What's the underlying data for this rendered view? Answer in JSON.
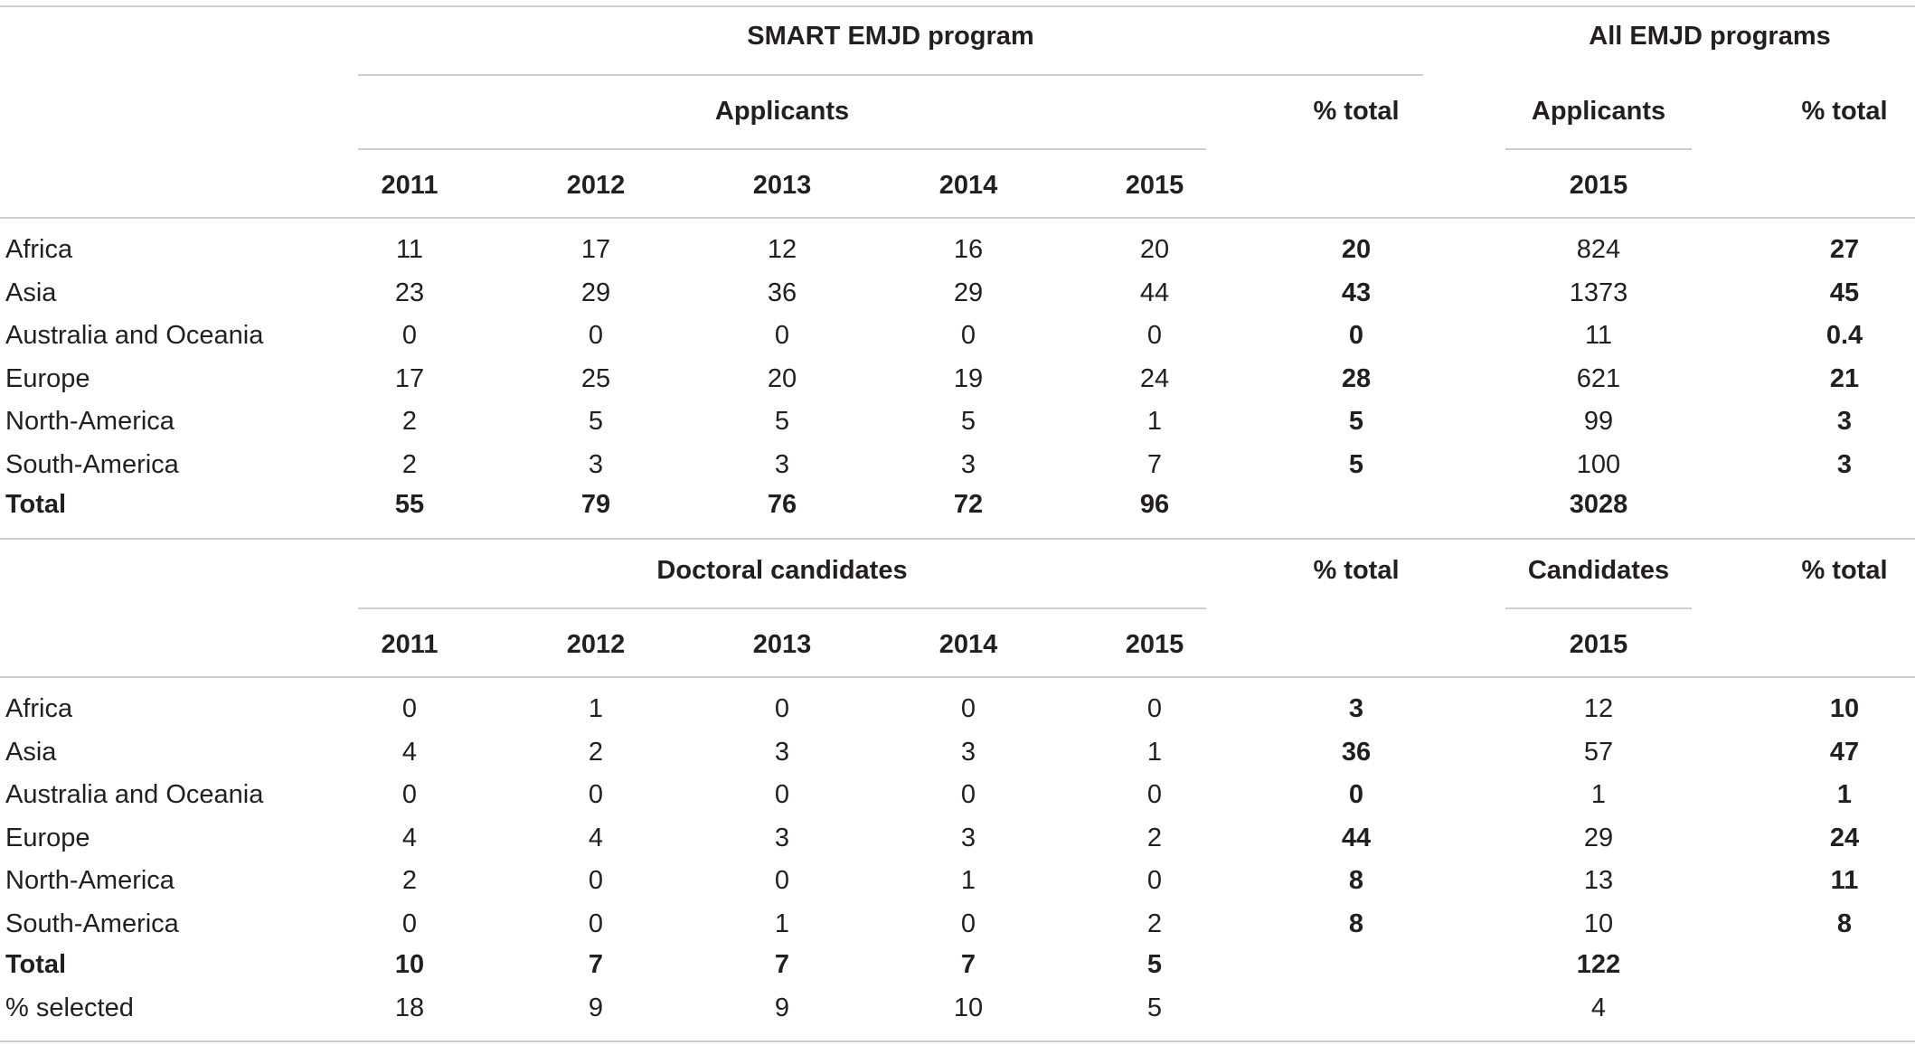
{
  "header": {
    "smart_title": "SMART EMJD program",
    "all_title": "All EMJD programs",
    "applicants_label": "Applicants",
    "pct_total_label": "% total",
    "all_applicants_label": "Applicants",
    "all_pct_total_label": "% total",
    "years": [
      "2011",
      "2012",
      "2013",
      "2014",
      "2015"
    ],
    "all_year": "2015"
  },
  "applicants_rows": [
    {
      "region": "Africa",
      "values": [
        "11",
        "17",
        "12",
        "16",
        "20"
      ],
      "pct": "20",
      "all_count": "824",
      "all_pct": "27"
    },
    {
      "region": "Asia",
      "values": [
        "23",
        "29",
        "36",
        "29",
        "44"
      ],
      "pct": "43",
      "all_count": "1373",
      "all_pct": "45"
    },
    {
      "region": "Australia and Oceania",
      "values": [
        "0",
        "0",
        "0",
        "0",
        "0"
      ],
      "pct": "0",
      "all_count": "11",
      "all_pct": "0.4"
    },
    {
      "region": "Europe",
      "values": [
        "17",
        "25",
        "20",
        "19",
        "24"
      ],
      "pct": "28",
      "all_count": "621",
      "all_pct": "21"
    },
    {
      "region": "North-America",
      "values": [
        "2",
        "5",
        "5",
        "5",
        "1"
      ],
      "pct": "5",
      "all_count": "99",
      "all_pct": "3"
    },
    {
      "region": "South-America",
      "values": [
        "2",
        "3",
        "3",
        "3",
        "7"
      ],
      "pct": "5",
      "all_count": "100",
      "all_pct": "3"
    }
  ],
  "applicants_total": {
    "label": "Total",
    "values": [
      "55",
      "79",
      "76",
      "72",
      "96"
    ],
    "all_count": "3028"
  },
  "candidates_header": {
    "doctoral_label": "Doctoral candidates",
    "pct_total_label": "% total",
    "candidates_label": "Candidates",
    "all_pct_total_label": "% total",
    "years": [
      "2011",
      "2012",
      "2013",
      "2014",
      "2015"
    ],
    "all_year": "2015"
  },
  "candidates_rows": [
    {
      "region": "Africa",
      "values": [
        "0",
        "1",
        "0",
        "0",
        "0"
      ],
      "pct": "3",
      "all_count": "12",
      "all_pct": "10"
    },
    {
      "region": "Asia",
      "values": [
        "4",
        "2",
        "3",
        "3",
        "1"
      ],
      "pct": "36",
      "all_count": "57",
      "all_pct": "47"
    },
    {
      "region": "Australia and Oceania",
      "values": [
        "0",
        "0",
        "0",
        "0",
        "0"
      ],
      "pct": "0",
      "all_count": "1",
      "all_pct": "1"
    },
    {
      "region": "Europe",
      "values": [
        "4",
        "4",
        "3",
        "3",
        "2"
      ],
      "pct": "44",
      "all_count": "29",
      "all_pct": "24"
    },
    {
      "region": "North-America",
      "values": [
        "2",
        "0",
        "0",
        "1",
        "0"
      ],
      "pct": "8",
      "all_count": "13",
      "all_pct": "11"
    },
    {
      "region": "South-America",
      "values": [
        "0",
        "0",
        "1",
        "0",
        "2"
      ],
      "pct": "8",
      "all_count": "10",
      "all_pct": "8"
    }
  ],
  "candidates_total": {
    "label": "Total",
    "values": [
      "10",
      "7",
      "7",
      "7",
      "5"
    ],
    "all_count": "122"
  },
  "selected_row": {
    "label": "% selected",
    "values": [
      "18",
      "9",
      "9",
      "10",
      "5"
    ],
    "all_count": "4"
  }
}
